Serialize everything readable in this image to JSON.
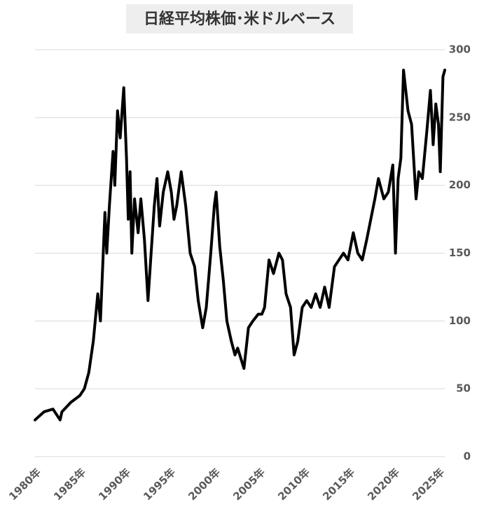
{
  "chart_data": {
    "type": "line",
    "title": "日経平均株価･米ドルベース",
    "color": "#000000",
    "grid": true,
    "x": [
      1980,
      1981,
      1982,
      1982.8,
      1983,
      1984,
      1985,
      1985.5,
      1986,
      1986.5,
      1987,
      1987.3,
      1987.8,
      1988,
      1988.3,
      1988.7,
      1988.9,
      1989.2,
      1989.5,
      1989.9,
      1990.2,
      1990.4,
      1990.6,
      1990.8,
      1991.1,
      1991.5,
      1991.8,
      1992.2,
      1992.6,
      1992.9,
      1993.3,
      1993.6,
      1993.9,
      1994.3,
      1994.8,
      1995.2,
      1995.5,
      1995.8,
      1996.3,
      1996.8,
      1997.3,
      1997.8,
      1998.2,
      1998.7,
      1999.1,
      1999.6,
      2000,
      2000.2,
      2000.6,
      2001,
      2001.4,
      2001.9,
      2002.3,
      2002.6,
      2003.3,
      2003.8,
      2004.3,
      2004.9,
      2005.3,
      2005.6,
      2006.1,
      2006.6,
      2007.2,
      2007.6,
      2008,
      2008.5,
      2008.9,
      2009.3,
      2009.8,
      2010.3,
      2010.8,
      2011.3,
      2011.8,
      2012.3,
      2012.8,
      2013.4,
      2013.9,
      2014.4,
      2014.9,
      2015.5,
      2016,
      2016.5,
      2017,
      2017.9,
      2018.3,
      2018.9,
      2019.4,
      2019.9,
      2020.2,
      2020.5,
      2020.8,
      2021.1,
      2021.6,
      2022,
      2022.5,
      2022.8,
      2023.2,
      2023.7,
      2024.1,
      2024.4,
      2024.7,
      2025,
      2025.2,
      2025.5,
      2025.7
    ],
    "values": [
      27,
      33,
      35,
      27,
      33,
      40,
      45,
      50,
      62,
      85,
      120,
      100,
      180,
      150,
      185,
      225,
      200,
      255,
      235,
      272,
      220,
      175,
      210,
      150,
      190,
      165,
      190,
      160,
      115,
      145,
      185,
      205,
      170,
      195,
      210,
      195,
      175,
      185,
      210,
      185,
      150,
      140,
      115,
      95,
      110,
      150,
      185,
      195,
      155,
      130,
      100,
      85,
      75,
      80,
      65,
      95,
      100,
      105,
      105,
      110,
      145,
      135,
      150,
      145,
      120,
      110,
      75,
      85,
      110,
      115,
      110,
      120,
      110,
      125,
      110,
      140,
      145,
      150,
      145,
      165,
      150,
      145,
      160,
      190,
      205,
      190,
      195,
      215,
      150,
      205,
      220,
      285,
      255,
      245,
      190,
      210,
      205,
      240,
      270,
      230,
      260,
      245,
      210,
      280,
      285
    ],
    "xlim": [
      1980,
      2025.7
    ],
    "xticks": [
      {
        "value": 1980,
        "label": "1980年"
      },
      {
        "value": 1985,
        "label": "1985年"
      },
      {
        "value": 1990,
        "label": "1990年"
      },
      {
        "value": 1995,
        "label": "1995年"
      },
      {
        "value": 2000,
        "label": "2000年"
      },
      {
        "value": 2005,
        "label": "2005年"
      },
      {
        "value": 2010,
        "label": "2010年"
      },
      {
        "value": 2015,
        "label": "2015年"
      },
      {
        "value": 2020,
        "label": "2020年"
      },
      {
        "value": 2025,
        "label": "2025年"
      }
    ],
    "ylim": [
      0,
      300
    ],
    "yticks": [
      0,
      50,
      100,
      150,
      200,
      250,
      300
    ]
  }
}
